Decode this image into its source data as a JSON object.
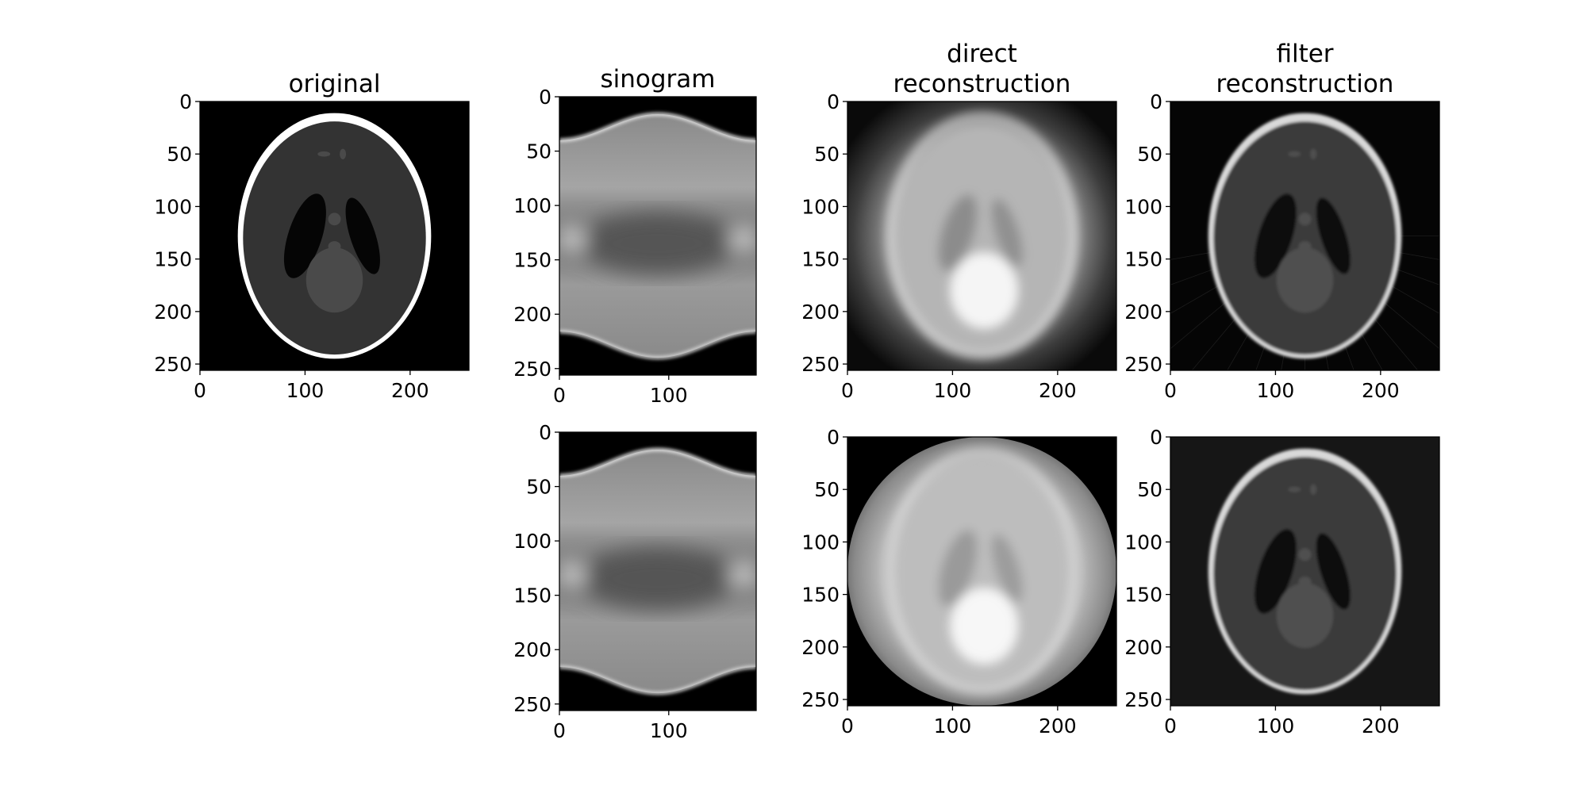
{
  "chart_data": [
    {
      "type": "heatmap",
      "id": "original",
      "title": [
        "original"
      ],
      "x_ticks": [
        0,
        100,
        200
      ],
      "y_ticks": [
        0,
        50,
        100,
        150,
        200,
        250
      ],
      "xlim": [
        0,
        256
      ],
      "ylim": [
        256,
        0
      ],
      "colormap": "gray",
      "content": "phantom"
    },
    {
      "type": "heatmap",
      "id": "sinogram-top",
      "title": [
        "sinogram"
      ],
      "x_ticks": [
        0,
        100
      ],
      "y_ticks": [
        0,
        50,
        100,
        150,
        200,
        250
      ],
      "xlim": [
        0,
        180
      ],
      "ylim": [
        256,
        0
      ],
      "colormap": "gray",
      "content": "sinogram"
    },
    {
      "type": "heatmap",
      "id": "direct-top",
      "title": [
        "direct",
        "reconstruction"
      ],
      "x_ticks": [
        0,
        100,
        200
      ],
      "y_ticks": [
        0,
        50,
        100,
        150,
        200,
        250
      ],
      "xlim": [
        0,
        256
      ],
      "ylim": [
        256,
        0
      ],
      "colormap": "gray",
      "content": "direct"
    },
    {
      "type": "heatmap",
      "id": "filter-top",
      "title": [
        "filter",
        "reconstruction"
      ],
      "x_ticks": [
        0,
        100,
        200
      ],
      "y_ticks": [
        0,
        50,
        100,
        150,
        200,
        250
      ],
      "xlim": [
        0,
        256
      ],
      "ylim": [
        256,
        0
      ],
      "colormap": "gray",
      "content": "filtered"
    },
    {
      "type": "heatmap",
      "id": "sinogram-bottom",
      "title": [],
      "x_ticks": [
        0,
        100
      ],
      "y_ticks": [
        0,
        50,
        100,
        150,
        200,
        250
      ],
      "xlim": [
        0,
        180
      ],
      "ylim": [
        256,
        0
      ],
      "colormap": "gray",
      "content": "sinogram"
    },
    {
      "type": "heatmap",
      "id": "direct-bottom",
      "title": [],
      "x_ticks": [
        0,
        100,
        200
      ],
      "y_ticks": [
        0,
        50,
        100,
        150,
        200,
        250
      ],
      "xlim": [
        0,
        256
      ],
      "ylim": [
        256,
        0
      ],
      "colormap": "gray",
      "content": "direct-circle"
    },
    {
      "type": "heatmap",
      "id": "filter-bottom",
      "title": [],
      "x_ticks": [
        0,
        100,
        200
      ],
      "y_ticks": [
        0,
        50,
        100,
        150,
        200,
        250
      ],
      "xlim": [
        0,
        256
      ],
      "ylim": [
        256,
        0
      ],
      "colormap": "gray",
      "content": "filtered-clean"
    }
  ]
}
